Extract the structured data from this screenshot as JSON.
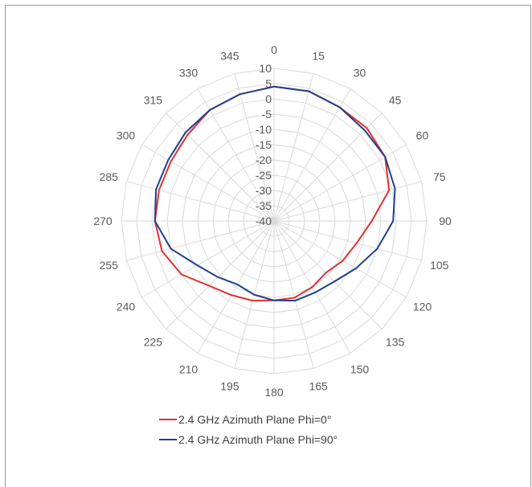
{
  "chart_data": {
    "type": "radar",
    "title": "",
    "angle_labels": [
      "0",
      "15",
      "30",
      "45",
      "60",
      "75",
      "90",
      "105",
      "120",
      "135",
      "150",
      "165",
      "180",
      "195",
      "210",
      "225",
      "240",
      "255",
      "270",
      "285",
      "300",
      "315",
      "330",
      "345"
    ],
    "radial_ticks": [
      10,
      5,
      0,
      -5,
      -10,
      -15,
      -20,
      -25,
      -30,
      -35,
      -40
    ],
    "rlim": [
      -40,
      10
    ],
    "grid": true,
    "legend_position": "bottom",
    "series": [
      {
        "name": "2.4 GHz Azimuth Plane Phi=0°",
        "color": "#e03030",
        "values": [
          4,
          4,
          3,
          3,
          2,
          -1,
          -8,
          -12,
          -14,
          -16,
          -15,
          -14,
          -14,
          -13,
          -12,
          -10,
          -5,
          -2,
          -1,
          -1,
          -1,
          0,
          2,
          3
        ]
      },
      {
        "name": "2.4 GHz Azimuth Plane Phi=90°",
        "color": "#1f3f8f",
        "values": [
          4,
          4,
          3,
          2,
          2,
          1,
          -1,
          -5,
          -9,
          -12,
          -13,
          -13,
          -14,
          -15,
          -16,
          -14,
          -11,
          -5,
          -1,
          0,
          0,
          1,
          2,
          3
        ]
      }
    ]
  }
}
